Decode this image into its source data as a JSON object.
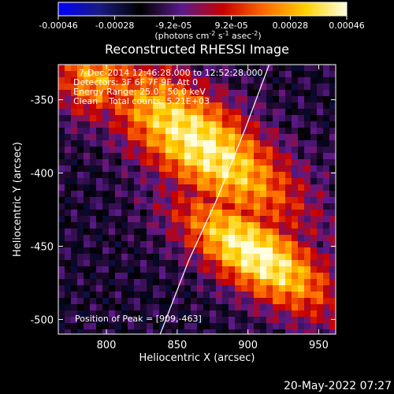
{
  "colorbar": {
    "tick_labels": [
      "-0.00046",
      "-0.00028",
      "-9.2e-05",
      "9.2e-05",
      "0.00028",
      "0.00046"
    ],
    "tick_values": [
      -0.00046,
      -0.00028,
      -9.2e-05,
      9.2e-05,
      0.00028,
      0.00046
    ],
    "range": [
      -0.00046,
      0.00046
    ],
    "units_prefix": "(photons cm",
    "units_exp1": "-2",
    "units_mid": " s",
    "units_exp2": "-1",
    "units_suffix": " asec",
    "units_exp3": "-2",
    "units_close": ")",
    "colormap": [
      "#0000ff",
      "#1a1a80",
      "#000000",
      "#5a1a8a",
      "#c80000",
      "#ff6a00",
      "#ffd000",
      "#ffffe0"
    ]
  },
  "plot": {
    "title": "Reconstructed RHESSI Image",
    "info_lines": [
      "7-Dec-2014 12:46:28.000 to 12:52:28.000",
      "Detectors: 3F 6F 7F 9F, Att 0",
      "Energy Range: 25.0 - 50.0 keV",
      "Clean    Total counts: 5.21E+03"
    ],
    "peak_label": "Position of Peak = [909,-463]"
  },
  "chart_data": {
    "type": "heatmap",
    "title": "Reconstructed RHESSI Image",
    "xlabel": "Heliocentric X (arcsec)",
    "ylabel": "Heliocentric Y (arcsec)",
    "xlim": [
      766,
      962
    ],
    "ylim": [
      -510,
      -326
    ],
    "x_ticks": [
      800,
      850,
      900,
      950
    ],
    "y_ticks": [
      -350,
      -400,
      -450,
      -500
    ],
    "peak": [
      909,
      -463
    ],
    "value_range": [
      -0.00046,
      0.00046
    ],
    "sources": [
      {
        "x": 866,
        "y": -380,
        "relative_intensity": 0.95
      },
      {
        "x": 909,
        "y": -463,
        "relative_intensity": 1.0
      },
      {
        "x": 795,
        "y": -335,
        "relative_intensity": 0.7
      }
    ],
    "limb_curve": [
      [
        915,
        -326
      ],
      [
        898,
        -370
      ],
      [
        878,
        -418
      ],
      [
        858,
        -460
      ],
      [
        838,
        -510
      ]
    ]
  },
  "footer": {
    "timestamp": "20-May-2022 07:27"
  }
}
